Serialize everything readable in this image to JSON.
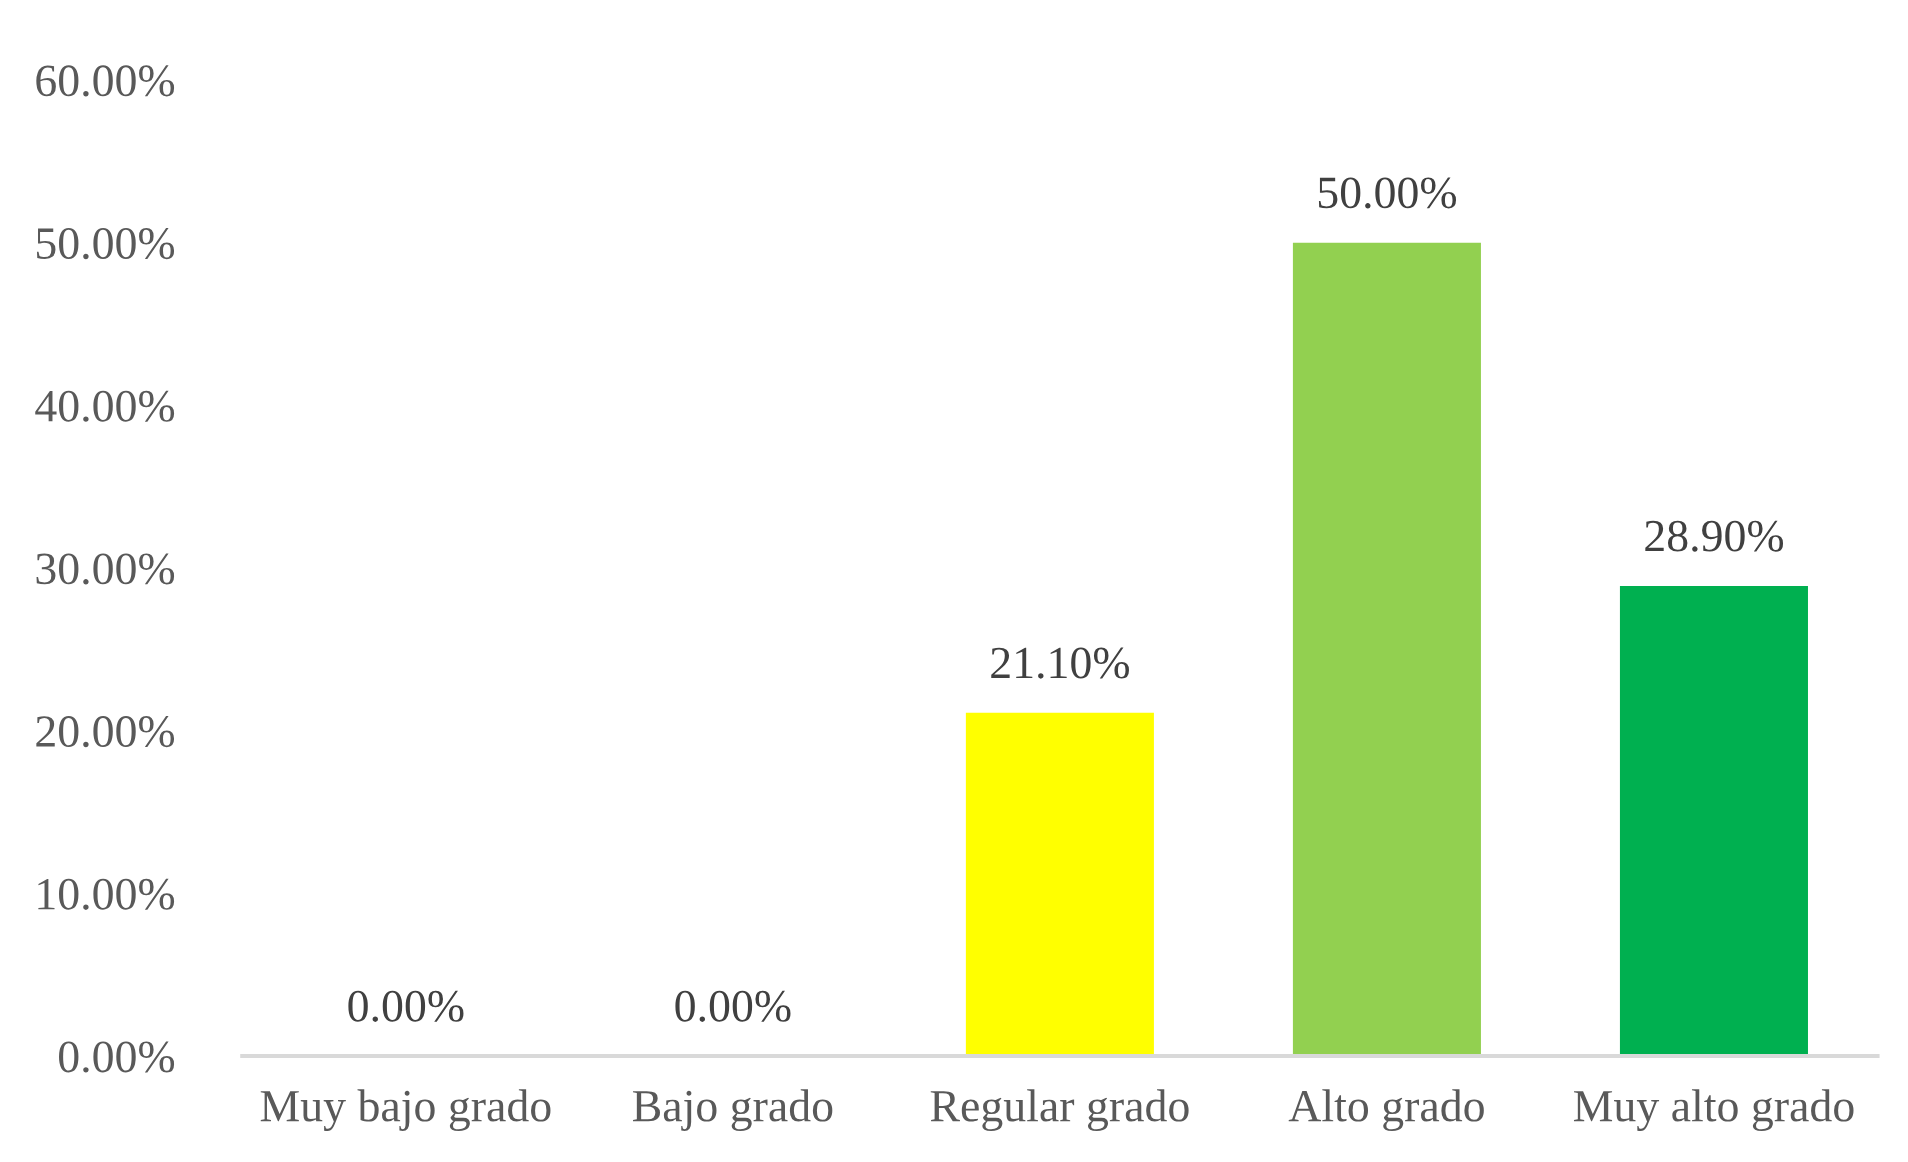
{
  "chart_data": {
    "type": "bar",
    "categories": [
      "Muy bajo grado",
      "Bajo grado",
      "Regular grado",
      "Alto grado",
      "Muy alto grado"
    ],
    "values": [
      0,
      0,
      21.1,
      50,
      28.9
    ],
    "colors": [
      "#ffff00",
      "#ffff00",
      "#ffff00",
      "#92d050",
      "#00b050"
    ],
    "value_labels": [
      "0.00%",
      "0.00%",
      "21.10%",
      "50.00%",
      "28.90%"
    ],
    "ylim": [
      0,
      60
    ],
    "yticks": [
      {
        "value": 0,
        "label": "0.00%"
      },
      {
        "value": 10,
        "label": "10.00%"
      },
      {
        "value": 20,
        "label": "20.00%"
      },
      {
        "value": 30,
        "label": "30.00%"
      },
      {
        "value": 40,
        "label": "40.00%"
      },
      {
        "value": 50,
        "label": "50.00%"
      },
      {
        "value": 60,
        "label": "60.00%"
      }
    ]
  }
}
